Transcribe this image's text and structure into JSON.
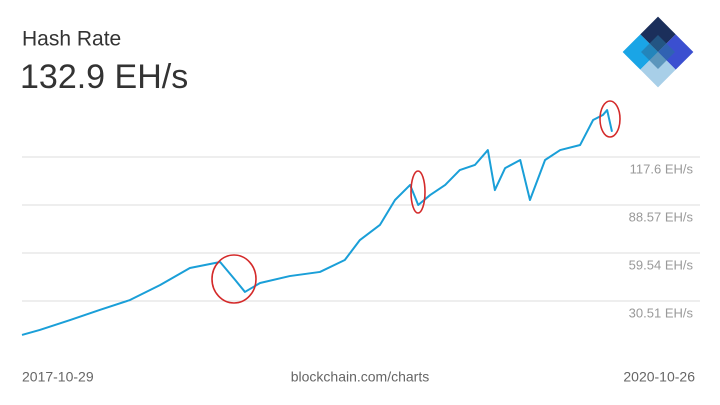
{
  "chart_data": {
    "type": "line",
    "title": "Hash Rate",
    "current_value_label": "132.9 EH/s",
    "source": "blockchain.com/charts",
    "x": [
      "2017-10-29",
      "2017-12-01",
      "2018-01-26",
      "2018-03-22",
      "2018-05-17",
      "2018-07-12",
      "2018-09-05",
      "2018-10-03",
      "2018-10-31",
      "2018-11-28",
      "2018-12-16",
      "2019-01-13",
      "2019-03-09",
      "2019-05-04",
      "2019-06-19",
      "2019-07-17",
      "2019-08-23",
      "2019-09-20",
      "2019-10-18",
      "2019-11-02",
      "2019-11-24",
      "2019-12-22",
      "2020-01-18",
      "2020-02-15",
      "2020-03-10",
      "2020-03-23",
      "2020-04-11",
      "2020-05-09",
      "2020-05-27",
      "2020-06-24",
      "2020-07-22",
      "2020-08-28",
      "2020-09-21",
      "2020-10-09",
      "2020-10-17",
      "2020-10-26"
    ],
    "values": [
      10.0,
      13.0,
      19.0,
      25.1,
      31.1,
      40.2,
      50.5,
      52.3,
      54.1,
      43.2,
      36.0,
      41.4,
      45.6,
      48.1,
      55.3,
      67.4,
      76.5,
      91.6,
      100.7,
      88.6,
      94.6,
      100.7,
      109.7,
      112.8,
      121.8,
      97.6,
      110.9,
      115.8,
      91.6,
      115.8,
      121.8,
      124.9,
      140.0,
      143.0,
      146.0,
      132.9
    ],
    "color": "#1a9fd8",
    "xlim": [
      "2017-10-29",
      "2020-10-26"
    ],
    "xticks": [
      "2017-10-29",
      "2020-10-26"
    ],
    "ylim": [
      3.9,
      152.1
    ],
    "yticks": [
      {
        "value": 30.51,
        "label": "30.51 EH/s"
      },
      {
        "value": 59.54,
        "label": "59.54 EH/s"
      },
      {
        "value": 88.57,
        "label": "88.57 EH/s"
      },
      {
        "value": 117.6,
        "label": "117.6 EH/s"
      }
    ],
    "grid": true
  }
}
